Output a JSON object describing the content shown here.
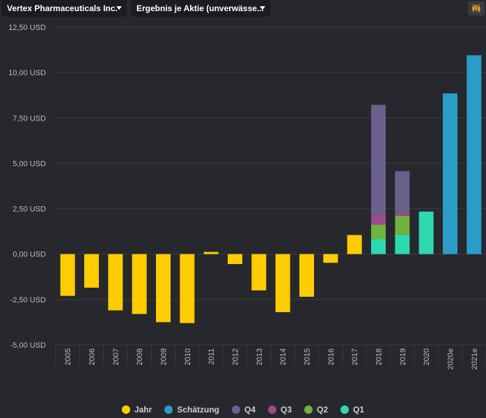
{
  "toolbar": {
    "company_select": "Vertex Pharmaceuticals Inc.",
    "metric_select": "Ergebnis je Aktie (unverwässe..."
  },
  "colors": {
    "jahr": "#ffcc00",
    "schaetzung": "#2b9cc7",
    "q4": "#6b5f8c",
    "q3": "#9b4a8c",
    "q2": "#6db33f",
    "q1": "#2ed8b0",
    "background": "#26282d",
    "grid": "#3a3c42"
  },
  "legend": [
    {
      "key": "jahr",
      "label": "Jahr",
      "icon": "circle"
    },
    {
      "key": "schaetzung",
      "label": "Schätzung",
      "icon": "circle"
    },
    {
      "key": "q4",
      "label": "Q4",
      "icon": "circle"
    },
    {
      "key": "q3",
      "label": "Q3",
      "icon": "circle"
    },
    {
      "key": "q2",
      "label": "Q2",
      "icon": "circle"
    },
    {
      "key": "q1",
      "label": "Q1",
      "icon": "circle"
    }
  ],
  "chart_data": {
    "type": "bar",
    "ylim": [
      -5,
      12.5
    ],
    "y_ticks": [
      "12,50 USD",
      "10,00 USD",
      "7,50 USD",
      "5,00 USD",
      "2,50 USD",
      "0,00 USD",
      "-2,50 USD",
      "-5,00 USD"
    ],
    "y_tick_values": [
      12.5,
      10,
      7.5,
      5,
      2.5,
      0,
      -2.5,
      -5
    ],
    "grid": true,
    "legend_position": "bottom",
    "categories": [
      "2005",
      "2006",
      "2007",
      "2008",
      "2009",
      "2010",
      "2011",
      "2012",
      "2013",
      "2014",
      "2015",
      "2016",
      "2017",
      "2018",
      "2019",
      "2020",
      "2020e",
      "2021e"
    ],
    "series": [
      {
        "name": "Jahr",
        "key": "jahr",
        "values": [
          -2.3,
          -1.85,
          -3.1,
          -3.3,
          -3.75,
          -3.8,
          0.12,
          -0.55,
          -2.0,
          -3.2,
          -2.35,
          -0.48,
          1.05,
          null,
          null,
          null,
          null,
          null
        ]
      },
      {
        "name": "Schätzung",
        "key": "schaetzung",
        "values": [
          null,
          null,
          null,
          null,
          null,
          null,
          null,
          null,
          null,
          null,
          null,
          null,
          null,
          null,
          null,
          null,
          8.85,
          10.95
        ]
      },
      {
        "name": "Q1",
        "key": "q1",
        "values": [
          null,
          null,
          null,
          null,
          null,
          null,
          null,
          null,
          null,
          null,
          null,
          null,
          null,
          0.83,
          1.07,
          2.34,
          null,
          null
        ]
      },
      {
        "name": "Q2",
        "key": "q2",
        "values": [
          null,
          null,
          null,
          null,
          null,
          null,
          null,
          null,
          null,
          null,
          null,
          null,
          null,
          0.8,
          1.03,
          null,
          null,
          null
        ]
      },
      {
        "name": "Q3",
        "key": "q3",
        "values": [
          null,
          null,
          null,
          null,
          null,
          null,
          null,
          null,
          null,
          null,
          null,
          null,
          null,
          0.53,
          0.15,
          null,
          null,
          null
        ]
      },
      {
        "name": "Q4",
        "key": "q4",
        "values": [
          null,
          null,
          null,
          null,
          null,
          null,
          null,
          null,
          null,
          null,
          null,
          null,
          null,
          6.06,
          2.32,
          null,
          null,
          null
        ]
      }
    ]
  }
}
